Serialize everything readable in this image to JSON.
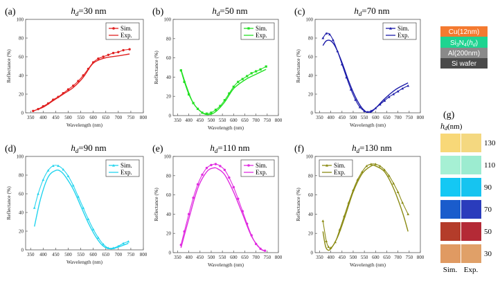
{
  "chart_data": [
    {
      "id": "a",
      "panel_label": "(a)",
      "type": "line",
      "title_var": "h",
      "title_sub": "d",
      "title_value": "=30 nm",
      "color": "#e02020",
      "xlabel": "Wavelength (nm)",
      "ylabel": "Reflectance (%)",
      "xlim": [
        330,
        800
      ],
      "ylim": [
        0,
        100
      ],
      "xticks": [
        350,
        400,
        450,
        500,
        550,
        600,
        650,
        700,
        750,
        800
      ],
      "yticks": [
        0,
        20,
        40,
        60,
        80,
        100
      ],
      "legend": [
        "Sim.",
        "Exp."
      ],
      "legend_position": "top-right",
      "series": [
        {
          "name": "Sim.",
          "marker": "circle",
          "x": [
            360,
            380,
            400,
            420,
            440,
            460,
            480,
            500,
            520,
            540,
            560,
            580,
            600,
            620,
            640,
            660,
            680,
            700,
            720,
            745
          ],
          "y": [
            2,
            4,
            7,
            10,
            14,
            17,
            21,
            25,
            29,
            34,
            40,
            47,
            54,
            58,
            60,
            62,
            64,
            65,
            67,
            68
          ]
        },
        {
          "name": "Exp.",
          "marker": "none",
          "x": [
            360,
            400,
            440,
            480,
            520,
            560,
            590,
            610,
            650,
            700,
            745
          ],
          "y": [
            2,
            6,
            13,
            20,
            27,
            38,
            50,
            55,
            59,
            61,
            63
          ]
        }
      ]
    },
    {
      "id": "b",
      "panel_label": "(b)",
      "type": "line",
      "title_var": "h",
      "title_sub": "d",
      "title_value": "=50 nm",
      "color": "#22e022",
      "xlabel": "Wavelength (nm)",
      "ylabel": "Reflectance (%)",
      "xlim": [
        330,
        800
      ],
      "ylim": [
        0,
        100
      ],
      "xticks": [
        350,
        400,
        450,
        500,
        550,
        600,
        650,
        700,
        750,
        800
      ],
      "yticks": [
        0,
        20,
        40,
        60,
        80,
        100
      ],
      "legend": [
        "Sim.",
        "Exp."
      ],
      "legend_position": "top-right",
      "series": [
        {
          "name": "Sim.",
          "marker": "square",
          "x": [
            365,
            380,
            400,
            420,
            440,
            460,
            480,
            500,
            520,
            540,
            560,
            580,
            600,
            620,
            640,
            660,
            680,
            700,
            720,
            745
          ],
          "y": [
            47,
            35,
            22,
            13,
            7,
            3,
            2,
            3,
            6,
            10,
            16,
            23,
            30,
            35,
            38,
            41,
            44,
            46,
            48,
            51
          ]
        },
        {
          "name": "Exp.",
          "marker": "none",
          "x": [
            365,
            390,
            420,
            460,
            490,
            520,
            560,
            600,
            650,
            700,
            745
          ],
          "y": [
            48,
            30,
            13,
            3,
            1,
            4,
            14,
            28,
            37,
            43,
            48
          ]
        }
      ]
    },
    {
      "id": "c",
      "panel_label": "(c)",
      "type": "line",
      "title_var": "h",
      "title_sub": "d",
      "title_value": "=70 nm",
      "color": "#1a1aa8",
      "xlabel": "Wavelength (nm)",
      "ylabel": "Reflectance (%)",
      "xlim": [
        330,
        800
      ],
      "ylim": [
        0,
        100
      ],
      "xticks": [
        350,
        400,
        450,
        500,
        550,
        600,
        650,
        700,
        750,
        800
      ],
      "yticks": [
        0,
        20,
        40,
        60,
        80,
        100
      ],
      "legend": [
        "Sim.",
        "Exp."
      ],
      "legend_position": "top-right",
      "series": [
        {
          "name": "Sim.",
          "marker": "triangle",
          "x": [
            365,
            380,
            395,
            410,
            430,
            450,
            470,
            490,
            510,
            530,
            550,
            565,
            580,
            600,
            620,
            640,
            660,
            680,
            700,
            720,
            745
          ],
          "y": [
            80,
            85,
            84,
            78,
            66,
            52,
            38,
            25,
            14,
            6,
            2,
            1,
            2,
            5,
            9,
            13,
            17,
            20,
            23,
            26,
            29
          ]
        },
        {
          "name": "Exp.",
          "marker": "none",
          "x": [
            365,
            380,
            400,
            420,
            450,
            480,
            510,
            540,
            570,
            600,
            640,
            690,
            745
          ],
          "y": [
            72,
            77,
            77,
            71,
            54,
            34,
            17,
            5,
            0,
            5,
            15,
            25,
            32
          ]
        }
      ]
    },
    {
      "id": "d",
      "panel_label": "(d)",
      "type": "line",
      "title_var": "h",
      "title_sub": "d",
      "title_value": "=90 nm",
      "color": "#22d4ee",
      "xlabel": "Wavelength (nm)",
      "ylabel": "Reflectance (%)",
      "xlim": [
        330,
        800
      ],
      "ylim": [
        0,
        100
      ],
      "xticks": [
        350,
        400,
        450,
        500,
        550,
        600,
        650,
        700,
        750,
        800
      ],
      "yticks": [
        0,
        20,
        40,
        60,
        80,
        100
      ],
      "legend": [
        "Sim.",
        "Exp."
      ],
      "legend_position": "top-right",
      "series": [
        {
          "name": "Sim.",
          "marker": "triangle",
          "x": [
            365,
            380,
            400,
            420,
            440,
            460,
            480,
            500,
            520,
            540,
            560,
            580,
            600,
            620,
            640,
            660,
            680,
            700,
            720,
            740
          ],
          "y": [
            45,
            60,
            75,
            85,
            90,
            90,
            86,
            79,
            69,
            57,
            45,
            33,
            22,
            13,
            6,
            2,
            2,
            4,
            7,
            9
          ]
        },
        {
          "name": "Exp.",
          "marker": "none",
          "x": [
            365,
            390,
            420,
            450,
            470,
            490,
            520,
            550,
            580,
            610,
            640,
            670,
            700,
            740
          ],
          "y": [
            25,
            55,
            78,
            85,
            84,
            78,
            65,
            47,
            29,
            14,
            4,
            1,
            3,
            7
          ]
        }
      ]
    },
    {
      "id": "e",
      "panel_label": "(e)",
      "type": "line",
      "title_var": "h",
      "title_sub": "d",
      "title_value": "=110 nm",
      "color": "#e02ce0",
      "xlabel": "Wavelength (nm)",
      "ylabel": "Reflectance (%)",
      "xlim": [
        330,
        800
      ],
      "ylim": [
        0,
        100
      ],
      "xticks": [
        350,
        400,
        450,
        500,
        550,
        600,
        650,
        700,
        750,
        800
      ],
      "yticks": [
        0,
        20,
        40,
        60,
        80,
        100
      ],
      "legend": [
        "Sim.",
        "Exp."
      ],
      "legend_position": "top-right",
      "series": [
        {
          "name": "Sim.",
          "marker": "circle",
          "x": [
            365,
            380,
            400,
            420,
            440,
            460,
            480,
            500,
            520,
            540,
            560,
            580,
            600,
            620,
            640,
            660,
            680,
            700,
            720,
            740
          ],
          "y": [
            8,
            22,
            40,
            57,
            71,
            81,
            88,
            91,
            92,
            90,
            86,
            78,
            68,
            56,
            43,
            30,
            18,
            9,
            4,
            2
          ]
        },
        {
          "name": "Exp.",
          "marker": "none",
          "x": [
            365,
            400,
            440,
            480,
            510,
            530,
            560,
            600,
            640,
            680,
            720,
            740
          ],
          "y": [
            5,
            35,
            67,
            84,
            88,
            87,
            81,
            63,
            40,
            17,
            4,
            2
          ]
        }
      ]
    },
    {
      "id": "f",
      "panel_label": "(f)",
      "type": "line",
      "title_var": "h",
      "title_sub": "d",
      "title_value": "=130 nm",
      "color": "#8a8a12",
      "xlabel": "Wavelength (nm)",
      "ylabel": "Reflectance (%)",
      "xlim": [
        330,
        800
      ],
      "ylim": [
        0,
        100
      ],
      "xticks": [
        350,
        400,
        450,
        500,
        550,
        600,
        650,
        700,
        750,
        800
      ],
      "yticks": [
        0,
        20,
        40,
        60,
        80,
        100
      ],
      "legend": [
        "Sim.",
        "Exp."
      ],
      "legend_position": "top-left",
      "series": [
        {
          "name": "Sim.",
          "marker": "triangle",
          "x": [
            365,
            380,
            390,
            400,
            420,
            440,
            460,
            480,
            500,
            520,
            540,
            560,
            580,
            600,
            620,
            640,
            660,
            680,
            700,
            720,
            745
          ],
          "y": [
            33,
            12,
            6,
            5,
            11,
            24,
            38,
            52,
            65,
            76,
            84,
            90,
            92,
            92,
            90,
            86,
            80,
            72,
            63,
            52,
            40
          ]
        },
        {
          "name": "Exp.",
          "marker": "none",
          "x": [
            365,
            375,
            385,
            400,
            430,
            460,
            500,
            540,
            580,
            600,
            640,
            680,
            720,
            745
          ],
          "y": [
            22,
            8,
            3,
            4,
            16,
            35,
            63,
            82,
            90,
            90,
            84,
            67,
            42,
            22
          ]
        }
      ]
    }
  ],
  "layer_stack": [
    {
      "name": "Cu(12nm)",
      "color": "#f47a30"
    },
    {
      "name": "Si3N4(hd)",
      "main": "Si",
      "sub1": "3",
      "mid": "N",
      "sub2": "4",
      "open": "(",
      "var": "h",
      "sub3": "d",
      "close": ")",
      "color": "#1ed490"
    },
    {
      "name": "Al(200nm)",
      "color": "#8a8a8a"
    },
    {
      "name": "Si wafer",
      "color": "#4a4a4a"
    }
  ],
  "swatch_panel": {
    "label": "(g)",
    "header_var": "h",
    "header_sub": "d",
    "header_unit": "(nm)",
    "col_labels": [
      "Sim.",
      "Exp."
    ],
    "rows": [
      {
        "value": "130",
        "sim": "#f8d878",
        "exp": "#f4d880"
      },
      {
        "value": "110",
        "sim": "#a6f0d4",
        "exp": "#9cecd0"
      },
      {
        "value": "90",
        "sim": "#14c8f4",
        "exp": "#16c4f0"
      },
      {
        "value": "70",
        "sim": "#1a5ccc",
        "exp": "#2a3cbc"
      },
      {
        "value": "50",
        "sim": "#b43c2a",
        "exp": "#b42a36"
      },
      {
        "value": "30",
        "sim": "#e09a62",
        "exp": "#e0a068"
      }
    ]
  }
}
